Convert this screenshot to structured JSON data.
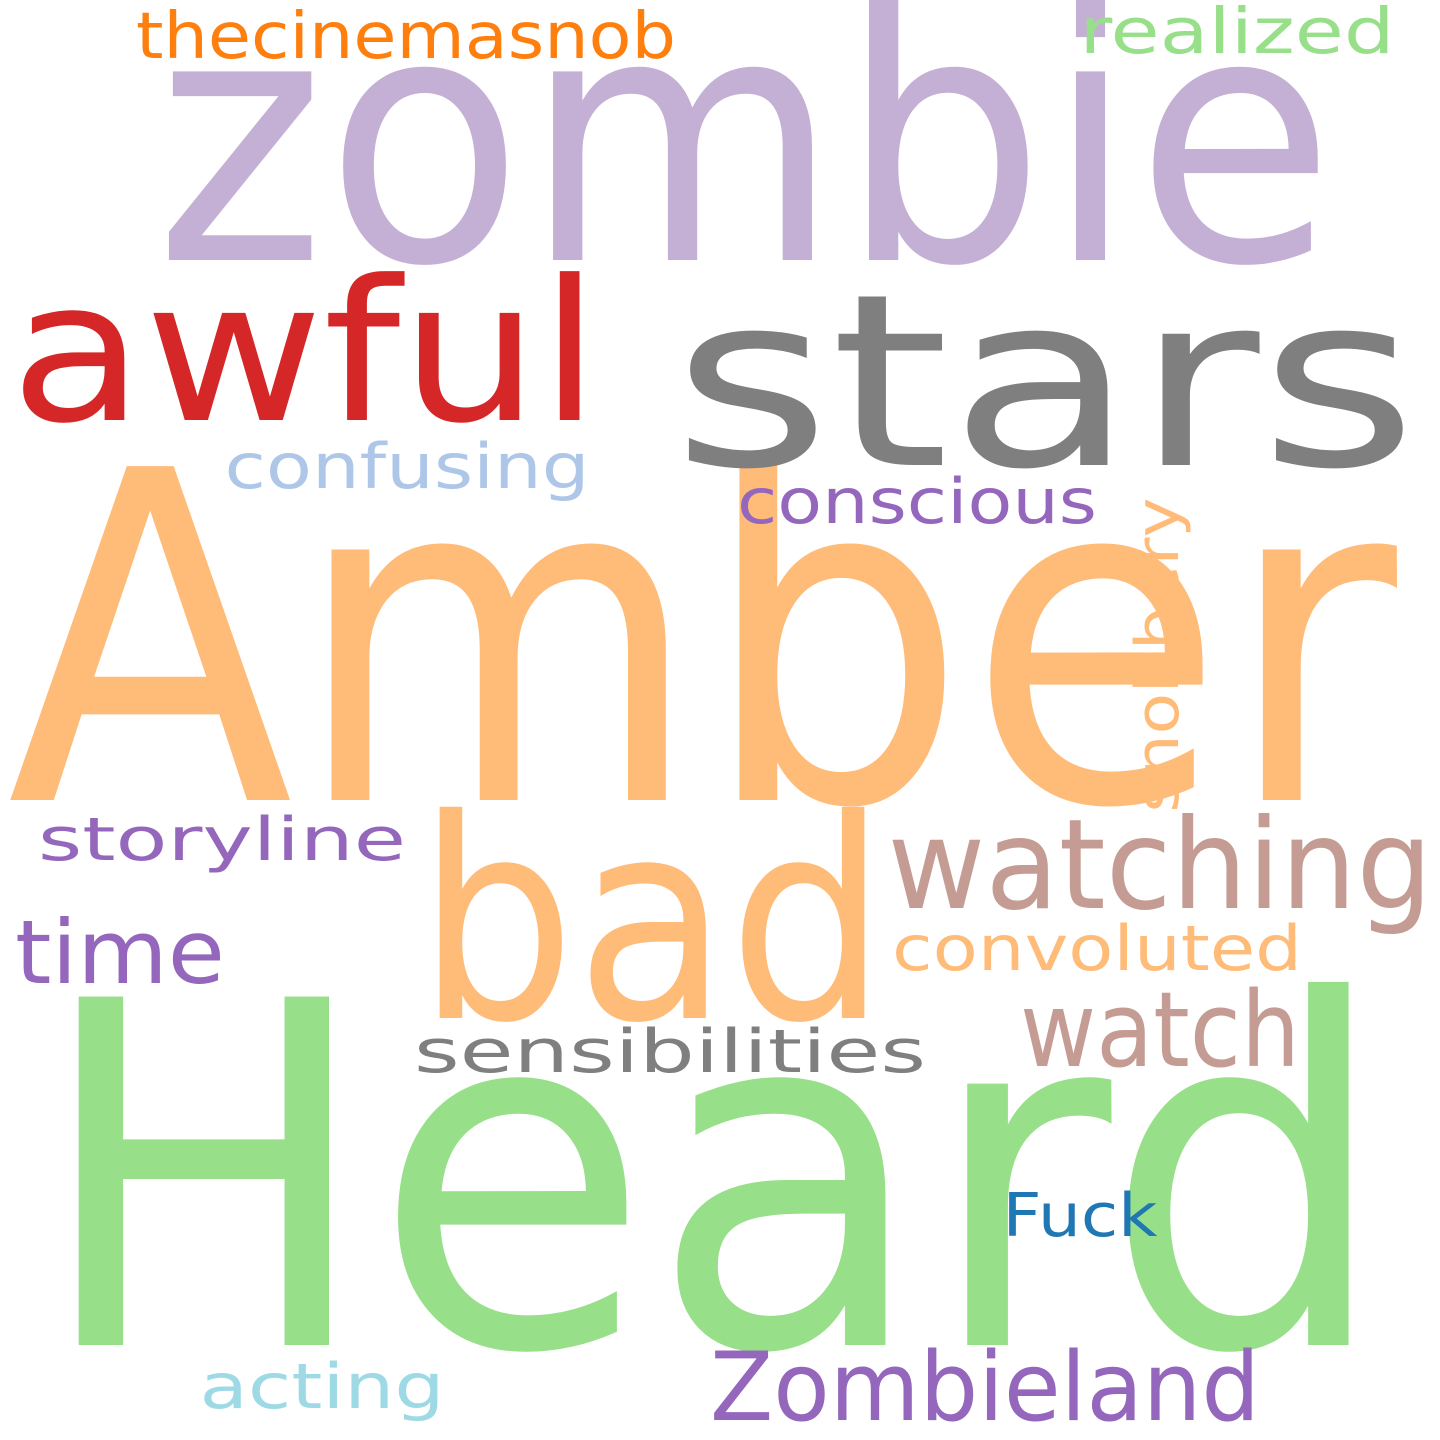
{
  "word_cloud": {
    "words": [
      {
        "text": "Amber",
        "color": "#FFBB78"
      },
      {
        "text": "Heard",
        "color": "#98DF8A"
      },
      {
        "text": "zombie",
        "color": "#C5B0D5"
      },
      {
        "text": "stars",
        "color": "#7F7F7F"
      },
      {
        "text": "awful",
        "color": "#D62728"
      },
      {
        "text": "bad",
        "color": "#FFBB78"
      },
      {
        "text": "watching",
        "color": "#C49C94"
      },
      {
        "text": "watch",
        "color": "#C49C94"
      },
      {
        "text": "Zombieland",
        "color": "#9467BD"
      },
      {
        "text": "time",
        "color": "#9467BD"
      },
      {
        "text": "thecinemasnob",
        "color": "#FF7F0E"
      },
      {
        "text": "realized",
        "color": "#98DF8A"
      },
      {
        "text": "confusing",
        "color": "#AEC7E8"
      },
      {
        "text": "conscious",
        "color": "#9467BD"
      },
      {
        "text": "snobbery",
        "color": "#FFBB78"
      },
      {
        "text": "storyline",
        "color": "#9467BD"
      },
      {
        "text": "convoluted",
        "color": "#FFBB78"
      },
      {
        "text": "sensibilities",
        "color": "#7F7F7F"
      },
      {
        "text": "Fuck",
        "color": "#1F77B4"
      },
      {
        "text": "acting",
        "color": "#9EDAE5"
      }
    ]
  }
}
